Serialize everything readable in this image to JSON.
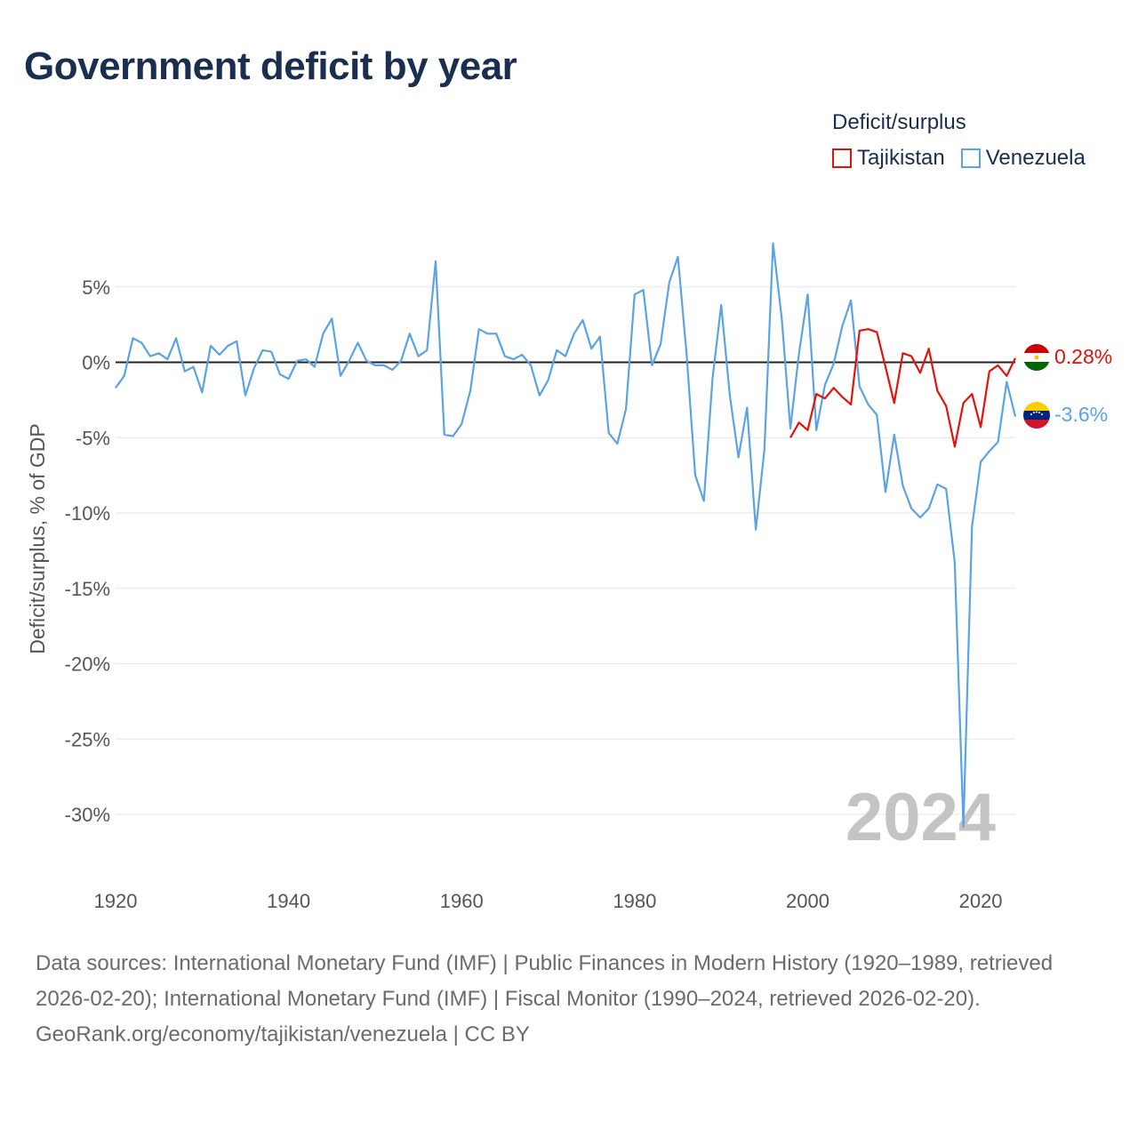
{
  "title": "Government deficit by year",
  "legend": {
    "title": "Deficit/surplus",
    "items": [
      {
        "label": "Tajikistan",
        "color": "#e3120b"
      },
      {
        "label": "Venezuela",
        "color": "#5aa3e4"
      }
    ]
  },
  "footer": {
    "sources": "Data sources: International Monetary Fund (IMF) | Public Finances in Modern History (1920–1989, retrieved 2026-02-20); International Monetary Fund (IMF) | Fiscal Monitor (1990–2024, retrieved 2026-02-20).",
    "credit": "GeoRank.org/economy/tajikistan/venezuela | CC BY"
  },
  "chart_data": {
    "type": "line",
    "title": "Government deficit by year",
    "xlabel": "",
    "ylabel": "Deficit/surplus, % of GDP",
    "xlim": [
      1920,
      2024
    ],
    "ylim": [
      -34,
      9
    ],
    "x_ticks": [
      1920,
      1940,
      1960,
      1980,
      2000,
      2020
    ],
    "x_tick_labels": [
      "1920",
      "1940",
      "1960",
      "1980",
      "2000",
      "2020"
    ],
    "y_ticks": [
      5,
      0,
      -5,
      -10,
      -15,
      -20,
      -25,
      -30
    ],
    "y_tick_labels": [
      "5%",
      "0%",
      "-5%",
      "-10%",
      "-15%",
      "-20%",
      "-25%",
      "-30%"
    ],
    "year_watermark": "2024",
    "series": [
      {
        "name": "Tajikistan",
        "color": "#e3120b",
        "end_label": "0.28%",
        "flag": "tajikistan",
        "x": [
          1998,
          1999,
          2000,
          2001,
          2002,
          2003,
          2004,
          2005,
          2006,
          2007,
          2008,
          2009,
          2010,
          2011,
          2012,
          2013,
          2014,
          2015,
          2016,
          2017,
          2018,
          2019,
          2020,
          2021,
          2022,
          2023,
          2024
        ],
        "values": [
          -5.0,
          -4.0,
          -4.5,
          -2.1,
          -2.4,
          -1.7,
          -2.3,
          -2.8,
          2.1,
          2.2,
          2.0,
          -0.3,
          -2.7,
          0.6,
          0.4,
          -0.7,
          0.9,
          -1.9,
          -2.9,
          -5.6,
          -2.7,
          -2.1,
          -4.3,
          -0.6,
          -0.2,
          -0.9,
          0.28
        ]
      },
      {
        "name": "Venezuela",
        "color": "#5aa3e4",
        "end_label": "-3.6%",
        "flag": "venezuela",
        "x": [
          1920,
          1921,
          1922,
          1923,
          1924,
          1925,
          1926,
          1927,
          1928,
          1929,
          1930,
          1931,
          1932,
          1933,
          1934,
          1935,
          1936,
          1937,
          1938,
          1939,
          1940,
          1941,
          1942,
          1943,
          1944,
          1945,
          1946,
          1947,
          1948,
          1949,
          1950,
          1951,
          1952,
          1953,
          1954,
          1955,
          1956,
          1957,
          1958,
          1959,
          1960,
          1961,
          1962,
          1963,
          1964,
          1965,
          1966,
          1967,
          1968,
          1969,
          1970,
          1971,
          1972,
          1973,
          1974,
          1975,
          1976,
          1977,
          1978,
          1979,
          1980,
          1981,
          1982,
          1983,
          1984,
          1985,
          1986,
          1987,
          1988,
          1989,
          1990,
          1991,
          1992,
          1993,
          1994,
          1995,
          1996,
          1997,
          1998,
          1999,
          2000,
          2001,
          2002,
          2003,
          2004,
          2005,
          2006,
          2007,
          2008,
          2009,
          2010,
          2011,
          2012,
          2013,
          2014,
          2015,
          2016,
          2017,
          2018,
          2019,
          2020,
          2021,
          2022,
          2023,
          2024
        ],
        "values": [
          -1.7,
          -0.9,
          1.6,
          1.3,
          0.4,
          0.6,
          0.2,
          1.6,
          -0.6,
          -0.3,
          -2.0,
          1.1,
          0.5,
          1.1,
          1.4,
          -2.2,
          -0.4,
          0.8,
          0.7,
          -0.8,
          -1.1,
          0.1,
          0.2,
          -0.3,
          1.9,
          2.9,
          -0.9,
          0.1,
          1.3,
          0.1,
          -0.2,
          -0.2,
          -0.5,
          0.1,
          1.9,
          0.4,
          0.8,
          6.7,
          -4.8,
          -4.9,
          -4.1,
          -1.9,
          2.2,
          1.9,
          1.9,
          0.4,
          0.2,
          0.5,
          -0.2,
          -2.2,
          -1.2,
          0.8,
          0.4,
          1.9,
          2.8,
          0.9,
          1.7,
          -4.7,
          -5.4,
          -3.1,
          4.5,
          4.8,
          -0.2,
          1.2,
          5.3,
          7.0,
          0.6,
          -7.5,
          -9.2,
          -1.1,
          3.8,
          -2.2,
          -6.3,
          -3.0,
          -11.1,
          -5.8,
          7.9,
          2.9,
          -4.4,
          0.6,
          4.5,
          -4.5,
          -1.5,
          -0.1,
          2.4,
          4.1,
          -1.6,
          -2.8,
          -3.5,
          -8.6,
          -4.8,
          -8.2,
          -9.7,
          -10.3,
          -9.7,
          -8.1,
          -8.4,
          -13.3,
          -30.8,
          -10.9,
          -6.6,
          -5.9,
          -5.3,
          -1.3,
          -3.6
        ]
      }
    ]
  }
}
